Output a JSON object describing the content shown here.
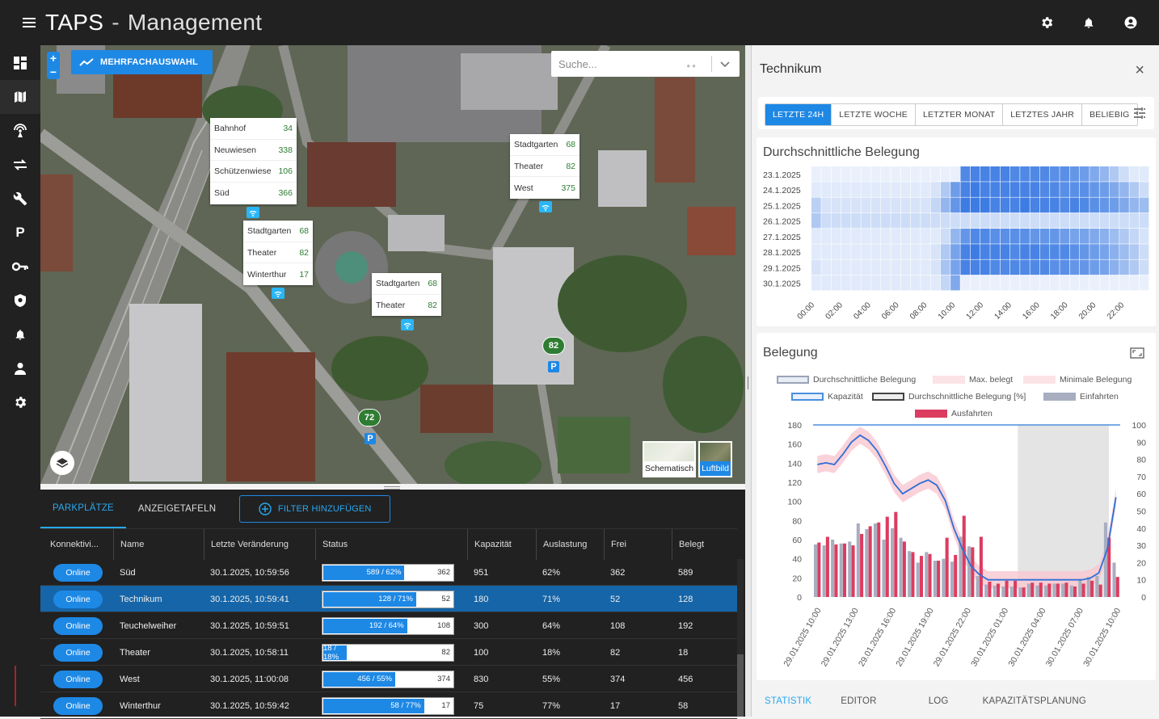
{
  "app": {
    "title": "TAPS",
    "section": "Management"
  },
  "topbar": {
    "icons": [
      "gear-icon",
      "bell-icon",
      "account-icon"
    ]
  },
  "sidebar": {
    "items": [
      "dashboard-icon",
      "map-icon",
      "signal-icon",
      "transfer-icon",
      "wrench-icon",
      "parking-icon",
      "key-icon",
      "shield-icon",
      "bell-icon",
      "user-icon",
      "settings-icon"
    ]
  },
  "map": {
    "zoom_in": "+",
    "zoom_out": "−",
    "multi_select_label": "MEHRFACHAUSWAHL",
    "search_placeholder": "Suche...",
    "popups": [
      {
        "rows": [
          {
            "name": "Bahnhof",
            "value": "34"
          },
          {
            "name": "Neuwiesen",
            "value": "338"
          },
          {
            "name": "Schützenwiese",
            "value": "106"
          },
          {
            "name": "Süd",
            "value": "366"
          }
        ]
      },
      {
        "rows": [
          {
            "name": "Stadtgarten",
            "value": "68"
          },
          {
            "name": "Theater",
            "value": "82"
          },
          {
            "name": "West",
            "value": "375"
          }
        ]
      },
      {
        "rows": [
          {
            "name": "Stadtgarten",
            "value": "68"
          },
          {
            "name": "Theater",
            "value": "82"
          },
          {
            "name": "Winterthur",
            "value": "17"
          }
        ]
      },
      {
        "rows": [
          {
            "name": "Stadtgarten",
            "value": "68"
          },
          {
            "name": "Theater",
            "value": "82"
          }
        ]
      }
    ],
    "markers": [
      {
        "count": "82",
        "p": "P"
      },
      {
        "count": "72",
        "p": "P"
      }
    ],
    "basemaps": {
      "schematic": "Schematisch",
      "aerial": "Luftbild"
    }
  },
  "lower": {
    "tabs": [
      "PARKPLÄTZE",
      "ANZEIGETAFELN"
    ],
    "filter_label": "FILTER HINZUFÜGEN",
    "columns": [
      "Konnektivi...",
      "Name",
      "Letzte Veränderung",
      "Status",
      "Kapazität",
      "Auslastung",
      "Frei",
      "Belegt"
    ],
    "rows": [
      {
        "status": "Online",
        "name": "Süd",
        "changed": "30.1.2025, 10:59:56",
        "bar_label": "589 / 62%",
        "bar_fill": 0.62,
        "bar_free": "362",
        "capacity": "951",
        "usage": "62%",
        "free": "362",
        "occupied": "589"
      },
      {
        "status": "Online",
        "name": "Technikum",
        "changed": "30.1.2025, 10:59:41",
        "bar_label": "128 / 71%",
        "bar_fill": 0.71,
        "bar_free": "52",
        "capacity": "180",
        "usage": "71%",
        "free": "52",
        "occupied": "128"
      },
      {
        "status": "Online",
        "name": "Teuchelweiher",
        "changed": "30.1.2025, 10:59:51",
        "bar_label": "192 / 64%",
        "bar_fill": 0.64,
        "bar_free": "108",
        "capacity": "300",
        "usage": "64%",
        "free": "108",
        "occupied": "192"
      },
      {
        "status": "Online",
        "name": "Theater",
        "changed": "30.1.2025, 10:58:11",
        "bar_label": "18 / 18%",
        "bar_fill": 0.18,
        "bar_free": "82",
        "capacity": "100",
        "usage": "18%",
        "free": "82",
        "occupied": "18"
      },
      {
        "status": "Online",
        "name": "West",
        "changed": "30.1.2025, 11:00:08",
        "bar_label": "456 / 55%",
        "bar_fill": 0.55,
        "bar_free": "374",
        "capacity": "830",
        "usage": "55%",
        "free": "374",
        "occupied": "456"
      },
      {
        "status": "Online",
        "name": "Winterthur",
        "changed": "30.1.2025, 10:59:42",
        "bar_label": "58 / 77%",
        "bar_fill": 0.77,
        "bar_free": "17",
        "capacity": "75",
        "usage": "77%",
        "free": "17",
        "occupied": "58"
      }
    ]
  },
  "detail": {
    "title": "Technikum",
    "close": "×",
    "ranges": [
      "LETZTE 24H",
      "LETZTE WOCHE",
      "LETZTER MONAT",
      "LETZTES JAHR",
      "BELIEBIG"
    ],
    "active_range": "LETZTE 24H",
    "footer_tabs": [
      "STATISTIK",
      "EDITOR",
      "LOG",
      "KAPAZITÄTSPLANUNG"
    ],
    "colors": {
      "accent": "#1e88e5",
      "heat_high": "#2a6fe0",
      "heat_low": "#eaf0fb",
      "bar_red": "#dc3c60",
      "bar_grey": "#a8aec0",
      "line": "#2f6fd8",
      "band": "#f9c7cf"
    }
  },
  "chart_data": [
    {
      "type": "heatmap",
      "title": "Durchschnittliche Belegung",
      "rows": [
        "23.1.2025",
        "24.1.2025",
        "25.1.2025",
        "26.1.2025",
        "27.1.2025",
        "28.1.2025",
        "29.1.2025",
        "30.1.2025"
      ],
      "x_ticks": [
        "00:00",
        "02:00",
        "04:00",
        "06:00",
        "08:00",
        "10:00",
        "12:00",
        "14:00",
        "16:00",
        "18:00",
        "20:00",
        "22:00"
      ],
      "values": [
        [
          0,
          0,
          0,
          0,
          0,
          0,
          0,
          0,
          0,
          0,
          0,
          0,
          0,
          0,
          0,
          0.8,
          0.85,
          0.85,
          0.85,
          0.85,
          0.8,
          0.8,
          0.8,
          0.8,
          0.75,
          0.75,
          0.7,
          0.65,
          0.55,
          0.45,
          0.3,
          0.15,
          0.05,
          0.05
        ],
        [
          0.05,
          0.05,
          0.05,
          0.05,
          0.05,
          0.05,
          0.05,
          0.05,
          0.05,
          0.05,
          0.05,
          0.05,
          0.1,
          0.3,
          0.65,
          0.85,
          0.9,
          0.85,
          0.85,
          0.85,
          0.85,
          0.85,
          0.85,
          0.8,
          0.8,
          0.75,
          0.75,
          0.75,
          0.7,
          0.65,
          0.55,
          0.45,
          0.3,
          0.15
        ],
        [
          0.25,
          0.1,
          0.1,
          0.1,
          0.1,
          0.1,
          0.1,
          0.1,
          0.1,
          0.1,
          0.1,
          0.1,
          0.2,
          0.45,
          0.7,
          0.9,
          0.9,
          0.9,
          0.85,
          0.85,
          0.85,
          0.9,
          0.85,
          0.85,
          0.85,
          0.8,
          0.85,
          0.8,
          0.75,
          0.7,
          0.65,
          0.55,
          0.45,
          0.4
        ],
        [
          0.3,
          0.15,
          0.15,
          0.15,
          0.15,
          0.15,
          0.15,
          0.15,
          0.15,
          0.15,
          0.15,
          0.15,
          0.15,
          0.15,
          0.15,
          0.15,
          0.15,
          0.15,
          0.15,
          0.15,
          0.15,
          0.15,
          0.15,
          0.15,
          0.15,
          0.15,
          0.15,
          0.15,
          0.15,
          0.15,
          0.15,
          0.15,
          0.15,
          0.15
        ],
        [
          0.05,
          0.05,
          0.05,
          0.05,
          0.05,
          0.05,
          0.05,
          0.05,
          0.05,
          0.05,
          0.05,
          0.05,
          0.05,
          0.15,
          0.45,
          0.7,
          0.8,
          0.8,
          0.75,
          0.75,
          0.75,
          0.75,
          0.7,
          0.7,
          0.7,
          0.65,
          0.6,
          0.6,
          0.55,
          0.5,
          0.4,
          0.3,
          0.2,
          0.1
        ],
        [
          0.05,
          0.05,
          0.05,
          0.05,
          0.05,
          0.05,
          0.05,
          0.05,
          0.05,
          0.05,
          0.05,
          0.05,
          0.1,
          0.3,
          0.6,
          0.85,
          0.9,
          0.85,
          0.85,
          0.85,
          0.8,
          0.85,
          0.85,
          0.8,
          0.8,
          0.8,
          0.75,
          0.7,
          0.65,
          0.6,
          0.5,
          0.4,
          0.3,
          0.15
        ],
        [
          0.1,
          0.05,
          0.05,
          0.05,
          0.05,
          0.05,
          0.05,
          0.05,
          0.05,
          0.05,
          0.05,
          0.05,
          0.1,
          0.35,
          0.6,
          0.85,
          0.85,
          0.85,
          0.8,
          0.8,
          0.8,
          0.8,
          0.8,
          0.8,
          0.75,
          0.75,
          0.7,
          0.7,
          0.65,
          0.6,
          0.5,
          0.4,
          0.3,
          0.15
        ],
        [
          0.05,
          0.05,
          0.05,
          0.05,
          0.05,
          0.05,
          0.05,
          0.05,
          0.05,
          0.05,
          0.05,
          0.05,
          0.05,
          0.2,
          0.55,
          0,
          0,
          0,
          0,
          0,
          0,
          0,
          0,
          0,
          0,
          0,
          0,
          0,
          0,
          0,
          0,
          0,
          0,
          0
        ]
      ]
    },
    {
      "type": "bar",
      "title": "Belegung",
      "legend": [
        "Durchschnittliche Belegung",
        "Max. belegt",
        "Minimale Belegung",
        "Kapazität",
        "Durchschnittliche Belegung [%]",
        "Einfahrten",
        "Ausfahrten"
      ],
      "x_ticks": [
        "29.01.2025 10:00",
        "29.01.2025 13:00",
        "29.01.2025 16:00",
        "29.01.2025 19:00",
        "29.01.2025 22:00",
        "30.01.2025 01:00",
        "30.01.2025 04:00",
        "30.01.2025 07:00",
        "30.01.2025 10:00"
      ],
      "ylim": [
        0,
        180
      ],
      "y_ticks": [
        "0",
        "20",
        "40",
        "60",
        "80",
        "100",
        "120",
        "140",
        "160",
        "180"
      ],
      "y2lim": [
        0,
        100
      ],
      "y2_ticks": [
        "0",
        "10",
        "20",
        "30",
        "40",
        "50",
        "60",
        "70",
        "80",
        "90",
        "100"
      ],
      "capacity": 180,
      "shaded_range": [
        24,
        36
      ],
      "series": [
        {
          "name": "Einfahrten",
          "values": [
            55,
            54,
            60,
            56,
            58,
            77,
            71,
            77,
            60,
            72,
            62,
            48,
            36,
            47,
            38,
            40,
            37,
            63,
            53,
            22,
            13,
            12,
            11,
            11,
            10,
            14,
            12,
            12,
            14,
            14,
            12,
            18,
            21,
            22,
            78,
            36
          ]
        },
        {
          "name": "Ausfahrten",
          "values": [
            57,
            63,
            55,
            56,
            54,
            66,
            74,
            78,
            84,
            89,
            58,
            47,
            43,
            45,
            38,
            62,
            44,
            85,
            52,
            63,
            16,
            14,
            17,
            17,
            10,
            15,
            15,
            14,
            14,
            15,
            11,
            14,
            17,
            13,
            62,
            21
          ]
        },
        {
          "name": "Durchschnittliche Belegung [%]",
          "values": [
            77,
            78,
            77,
            83,
            90,
            94,
            91,
            85,
            76,
            66,
            60,
            63,
            66,
            68,
            65,
            56,
            40,
            28,
            18,
            13,
            10,
            10,
            10,
            10,
            10,
            10,
            10,
            10,
            10,
            10,
            10,
            10,
            11,
            14,
            28,
            58
          ]
        }
      ]
    }
  ]
}
